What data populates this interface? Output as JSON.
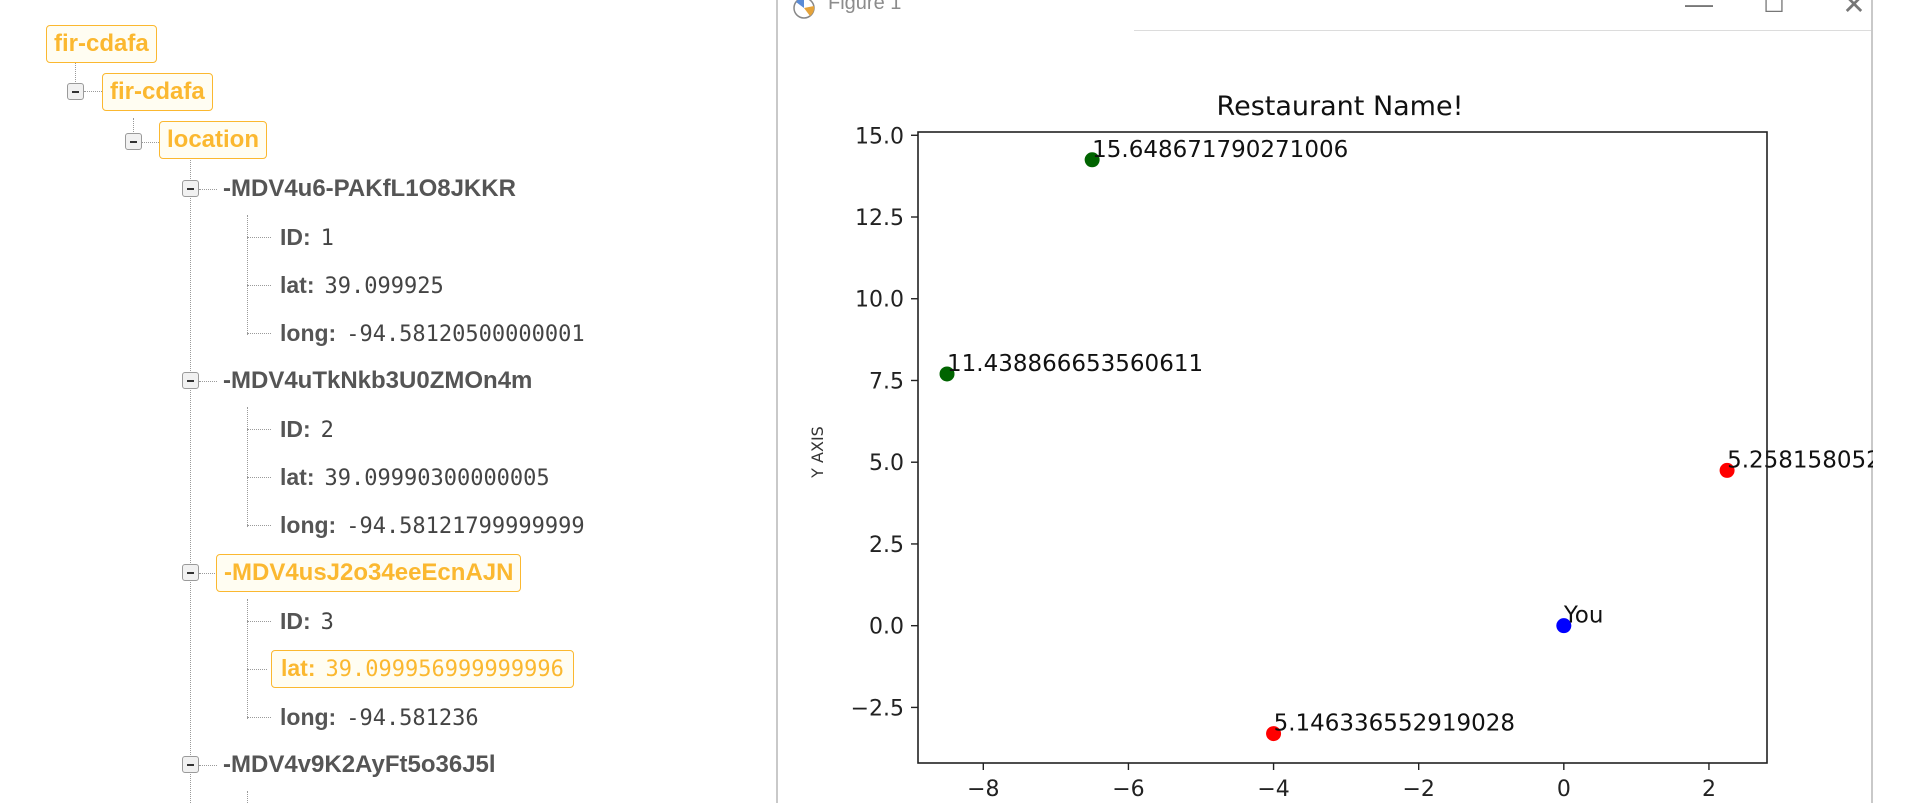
{
  "tree": {
    "root": "fir-cdafa",
    "child": "fir-cdafa",
    "location": "location",
    "records": [
      {
        "key": "-MDV4u6-PAKfL1O8JKKR",
        "id_label": "ID:",
        "id": "1",
        "lat_label": "lat:",
        "lat": "39.099925",
        "long_label": "long:",
        "long": "-94.58120500000001"
      },
      {
        "key": "-MDV4uTkNkb3U0ZMOn4m",
        "id_label": "ID:",
        "id": "2",
        "lat_label": "lat:",
        "lat": "39.09990300000005",
        "long_label": "long:",
        "long": "-94.58121799999999"
      },
      {
        "key": "-MDV4usJ2o34eeEcnAJN",
        "id_label": "ID:",
        "id": "3",
        "lat_label": "lat:",
        "lat": "39.099956999999996",
        "long_label": "long:",
        "long": "-94.581236"
      },
      {
        "key": "-MDV4v9K2AyFt5o36J5l"
      }
    ]
  },
  "window": {
    "title": "Figure 1",
    "minimize": "—",
    "maximize": "☐",
    "close": "✕",
    "icon": "matplotlib-logo-icon"
  },
  "chart_data": {
    "type": "scatter",
    "title": "Restaurant Name!",
    "xlabel": "",
    "ylabel": "Y AXIS",
    "xlim": [
      -8.9,
      2.8
    ],
    "ylim": [
      -4.2,
      15.1
    ],
    "xticks": [
      "−8",
      "−6",
      "−4",
      "−2",
      "0",
      "2"
    ],
    "xtick_values": [
      -8,
      -6,
      -4,
      -2,
      0,
      2
    ],
    "yticks": [
      "−2.5",
      "0.0",
      "2.5",
      "5.0",
      "7.5",
      "10.0",
      "12.5",
      "15.0"
    ],
    "ytick_values": [
      -2.5,
      0.0,
      2.5,
      5.0,
      7.5,
      10.0,
      12.5,
      15.0
    ],
    "grid": false,
    "points": [
      {
        "x": -6.5,
        "y": 14.25,
        "color": "#006400",
        "label": "15.648671790271006"
      },
      {
        "x": -8.5,
        "y": 7.7,
        "color": "#006400",
        "label": "11.438866653560611"
      },
      {
        "x": 2.25,
        "y": 4.75,
        "color": "#ff0000",
        "label": "5.258158052"
      },
      {
        "x": 0.0,
        "y": 0.0,
        "color": "#0000ff",
        "label": "You"
      },
      {
        "x": -4.0,
        "y": -3.3,
        "color": "#ff0000",
        "label": "5.146336552919028"
      }
    ]
  }
}
